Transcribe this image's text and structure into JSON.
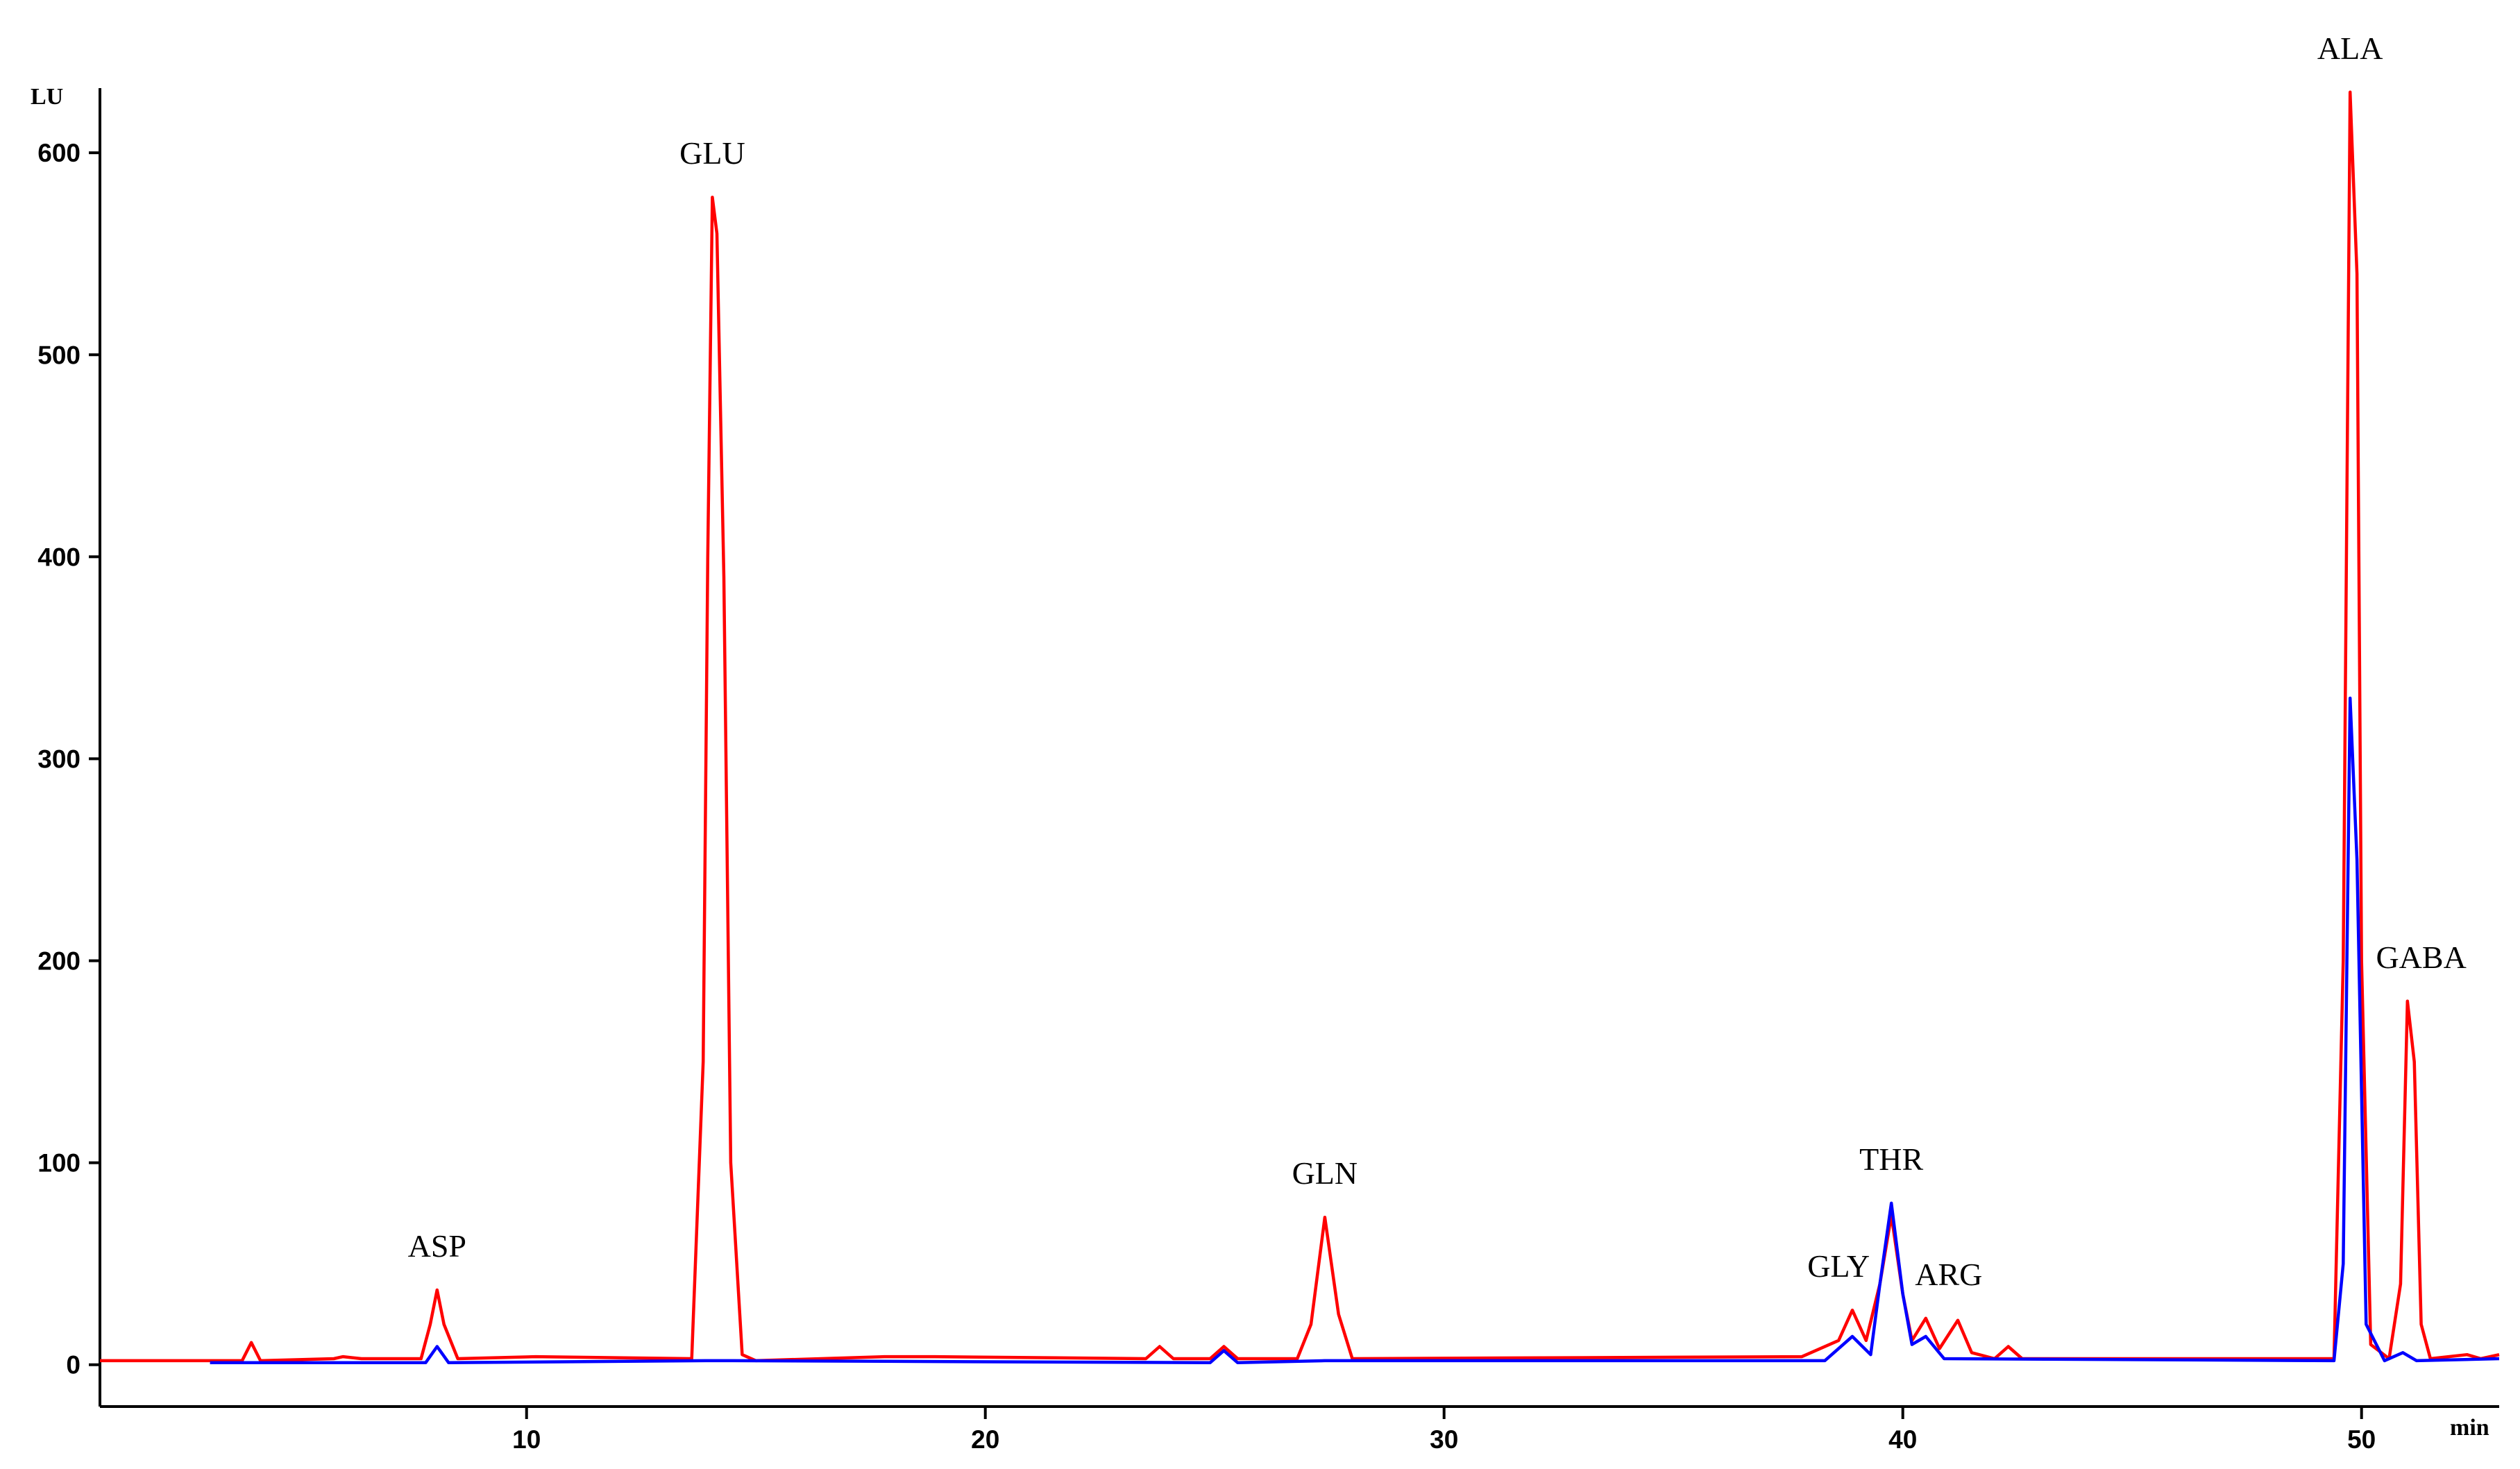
{
  "chart_data": {
    "type": "line",
    "xlabel": "min",
    "ylabel": "LU",
    "xlim": [
      0.7,
      53
    ],
    "ylim": [
      -20.7,
      632
    ],
    "xticks": [
      10,
      20,
      30,
      40,
      50
    ],
    "yticks": [
      0,
      100,
      200,
      300,
      400,
      500,
      600
    ],
    "series": [
      {
        "color": "#ff0000",
        "x": [
          0.7,
          3.5,
          3.8,
          4.0,
          4.2,
          5.8,
          6.0,
          6.4,
          7.7,
          7.9,
          8.05,
          8.2,
          8.5,
          10.2,
          13.6,
          13.85,
          13.95,
          14.05,
          14.15,
          14.3,
          14.45,
          14.7,
          15,
          17.8,
          18.9,
          23.5,
          23.8,
          24.1,
          24.9,
          25.2,
          25.5,
          26.8,
          27.1,
          27.4,
          27.7,
          28,
          37.8,
          38.6,
          38.9,
          39.2,
          39.5,
          39.75,
          40.0,
          40.2,
          40.5,
          40.8,
          41.2,
          41.5,
          42.0,
          42.3,
          42.6,
          49.4,
          49.6,
          49.75,
          49.9,
          50.0,
          50.2,
          50.6,
          50.85,
          51.0,
          51.15,
          51.3,
          51.5,
          52.3,
          52.6,
          53
        ],
        "values": [
          2,
          2,
          2,
          11,
          2,
          3,
          4,
          3,
          3,
          20,
          37,
          20,
          3,
          4,
          3,
          150,
          400,
          578,
          560,
          390,
          100,
          5,
          2,
          4,
          4,
          3,
          9,
          3,
          3,
          9,
          3,
          3,
          20,
          73,
          25,
          3,
          4,
          12,
          27,
          12,
          40,
          74,
          35,
          12,
          23,
          8,
          22,
          6,
          3,
          9,
          3,
          3,
          200,
          630,
          540,
          200,
          10,
          3,
          40,
          180,
          150,
          20,
          3,
          5,
          3,
          5
        ]
      },
      {
        "color": "#0000ff",
        "x": [
          3.1,
          7.8,
          8.05,
          8.3,
          13.9,
          14.5,
          24.9,
          25.2,
          25.5,
          27.4,
          38.3,
          38.9,
          39.3,
          39.5,
          39.75,
          40.0,
          40.2,
          40.5,
          40.9,
          49.4,
          49.6,
          49.75,
          49.9,
          50.1,
          50.5,
          50.9,
          51.2,
          53
        ],
        "values": [
          1,
          1,
          9,
          1,
          2,
          2,
          1,
          7,
          1,
          2,
          2,
          14,
          5,
          40,
          80,
          35,
          10,
          14,
          3,
          2,
          50,
          330,
          250,
          20,
          2,
          6,
          2,
          3
        ]
      }
    ],
    "annotations": [
      {
        "text": "ASP",
        "x": 8.05,
        "y": 37
      },
      {
        "text": "GLU",
        "x": 14.05,
        "y": 578
      },
      {
        "text": "GLN",
        "x": 27.4,
        "y": 73
      },
      {
        "text": "GLY",
        "x": 38.6,
        "y": 27
      },
      {
        "text": "THR",
        "x": 39.75,
        "y": 80
      },
      {
        "text": "ARG",
        "x": 41.0,
        "y": 23
      },
      {
        "text": "ALA",
        "x": 49.75,
        "y": 630
      },
      {
        "text": "GABA",
        "x": 51.3,
        "y": 180
      }
    ]
  }
}
